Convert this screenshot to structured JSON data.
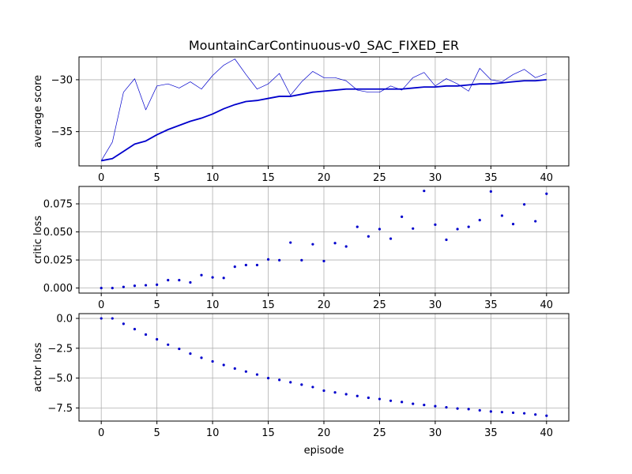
{
  "chart_data": [
    {
      "type": "line",
      "title": "MountainCarContinuous-v0_SAC_FIXED_ER",
      "xlabel": "",
      "ylabel": "average score",
      "xlim": [
        -2,
        42
      ],
      "ylim": [
        -38.3,
        -27.8
      ],
      "xticks": [
        0,
        5,
        10,
        15,
        20,
        25,
        30,
        35,
        40
      ],
      "yticks": [
        -35,
        -30
      ],
      "ytick_labels": [
        "−35",
        "−30"
      ],
      "grid": true,
      "x": [
        0,
        1,
        2,
        3,
        4,
        5,
        6,
        7,
        8,
        9,
        10,
        11,
        12,
        13,
        14,
        15,
        16,
        17,
        18,
        19,
        20,
        21,
        22,
        23,
        24,
        25,
        26,
        27,
        28,
        29,
        30,
        31,
        32,
        33,
        34,
        35,
        36,
        37,
        38,
        39,
        40
      ],
      "series": [
        {
          "style": "thin",
          "color": "#0000cc",
          "values": [
            -37.8,
            -36.0,
            -31.2,
            -29.9,
            -32.9,
            -30.6,
            -30.4,
            -30.8,
            -30.2,
            -30.9,
            -29.6,
            -28.6,
            -28.0,
            -29.5,
            -30.9,
            -30.4,
            -29.4,
            -31.5,
            -30.2,
            -29.2,
            -29.8,
            -29.8,
            -30.1,
            -31.0,
            -31.2,
            -31.2,
            -30.6,
            -31.0,
            -29.8,
            -29.3,
            -30.6,
            -29.9,
            -30.4,
            -31.1,
            -28.9,
            -30.0,
            -30.2,
            -29.5,
            -29.0,
            -29.8,
            -29.4
          ]
        },
        {
          "style": "thick",
          "color": "#0000cc",
          "values": [
            -37.8,
            -37.6,
            -36.9,
            -36.2,
            -35.9,
            -35.3,
            -34.8,
            -34.4,
            -34.0,
            -33.7,
            -33.3,
            -32.8,
            -32.4,
            -32.1,
            -32.0,
            -31.8,
            -31.6,
            -31.6,
            -31.4,
            -31.2,
            -31.1,
            -31.0,
            -30.9,
            -30.9,
            -30.9,
            -30.9,
            -30.9,
            -30.9,
            -30.8,
            -30.7,
            -30.7,
            -30.6,
            -30.6,
            -30.5,
            -30.4,
            -30.4,
            -30.3,
            -30.2,
            -30.1,
            -30.1,
            -30.0
          ]
        }
      ]
    },
    {
      "type": "scatter",
      "xlabel": "",
      "ylabel": "critic loss",
      "xlim": [
        -2,
        42
      ],
      "ylim": [
        -0.0045,
        0.0905
      ],
      "xticks": [
        0,
        5,
        10,
        15,
        20,
        25,
        30,
        35,
        40
      ],
      "yticks": [
        0.0,
        0.025,
        0.05,
        0.075
      ],
      "ytick_labels": [
        "0.000",
        "0.025",
        "0.050",
        "0.075"
      ],
      "grid": true,
      "color": "#0000cc",
      "x": [
        0,
        1,
        2,
        3,
        4,
        5,
        6,
        7,
        8,
        9,
        10,
        11,
        12,
        13,
        14,
        15,
        16,
        17,
        18,
        19,
        20,
        21,
        22,
        23,
        24,
        25,
        26,
        27,
        28,
        29,
        30,
        31,
        32,
        33,
        34,
        35,
        36,
        37,
        38,
        39,
        40
      ],
      "values": [
        0.0,
        0.0,
        0.001,
        0.002,
        0.0025,
        0.003,
        0.007,
        0.007,
        0.005,
        0.0115,
        0.0095,
        0.009,
        0.019,
        0.0205,
        0.0205,
        0.0255,
        0.0248,
        0.0405,
        0.0248,
        0.039,
        0.024,
        0.04,
        0.037,
        0.0545,
        0.046,
        0.0525,
        0.044,
        0.0635,
        0.053,
        0.0865,
        0.0565,
        0.043,
        0.0525,
        0.0545,
        0.0605,
        0.086,
        0.0645,
        0.057,
        0.0745,
        0.0595,
        0.084
      ]
    },
    {
      "type": "scatter",
      "xlabel": "episode",
      "ylabel": "actor loss",
      "xlim": [
        -2,
        42
      ],
      "ylim": [
        -8.6,
        0.4
      ],
      "xticks": [
        0,
        5,
        10,
        15,
        20,
        25,
        30,
        35,
        40
      ],
      "yticks": [
        -7.5,
        -5.0,
        -2.5,
        0.0
      ],
      "ytick_labels": [
        "−7.5",
        "−5.0",
        "−2.5",
        "0.0"
      ],
      "grid": true,
      "color": "#0000cc",
      "x": [
        0,
        1,
        2,
        3,
        4,
        5,
        6,
        7,
        8,
        9,
        10,
        11,
        12,
        13,
        14,
        15,
        16,
        17,
        18,
        19,
        20,
        21,
        22,
        23,
        24,
        25,
        26,
        27,
        28,
        29,
        30,
        31,
        32,
        33,
        34,
        35,
        36,
        37,
        38,
        39,
        40
      ],
      "values": [
        0.0,
        0.0,
        -0.45,
        -0.9,
        -1.35,
        -1.75,
        -2.2,
        -2.55,
        -2.95,
        -3.3,
        -3.6,
        -3.9,
        -4.2,
        -4.45,
        -4.7,
        -5.0,
        -5.15,
        -5.35,
        -5.55,
        -5.75,
        -6.05,
        -6.2,
        -6.35,
        -6.5,
        -6.65,
        -6.75,
        -6.9,
        -7.0,
        -7.15,
        -7.25,
        -7.35,
        -7.45,
        -7.55,
        -7.6,
        -7.7,
        -7.8,
        -7.85,
        -7.9,
        -7.95,
        -8.05,
        -8.15
      ]
    }
  ]
}
